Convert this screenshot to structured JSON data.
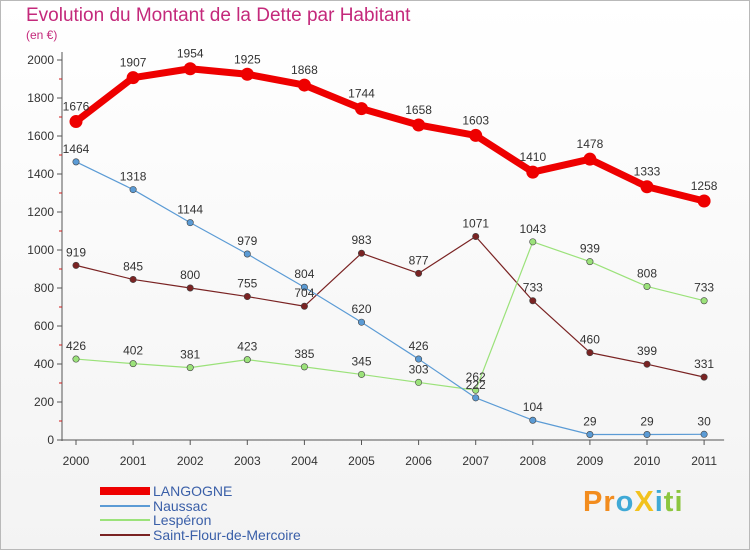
{
  "chart_data": {
    "type": "line",
    "title": "Evolution du Montant de la Dette par Habitant",
    "subtitle": "(en €)",
    "x": [
      "2000",
      "2001",
      "2002",
      "2003",
      "2004",
      "2005",
      "2006",
      "2007",
      "2008",
      "2009",
      "2010",
      "2011"
    ],
    "yticks": [
      0,
      200,
      400,
      600,
      800,
      1000,
      1200,
      1400,
      1600,
      1800,
      2000
    ],
    "ylim": [
      0,
      2000
    ],
    "grid": false,
    "legend_position": "bottom-left",
    "series": [
      {
        "name": "LANGOGNE",
        "color": "#ee0000",
        "values": [
          1676,
          1907,
          1954,
          1925,
          1868,
          1744,
          1658,
          1603,
          1410,
          1478,
          1333,
          1258
        ]
      },
      {
        "name": "Naussac",
        "color": "#5b9bd5",
        "values": [
          1464,
          1318,
          1144,
          979,
          804,
          620,
          426,
          222,
          104,
          29,
          29,
          30
        ]
      },
      {
        "name": "Lespéron",
        "color": "#9be27a",
        "values": [
          426,
          402,
          381,
          423,
          385,
          345,
          303,
          262,
          1043,
          939,
          808,
          733
        ]
      },
      {
        "name": "Saint-Flour-de-Mercoire",
        "color": "#7a2323",
        "values": [
          919,
          845,
          800,
          755,
          704,
          983,
          877,
          1071,
          733,
          460,
          399,
          331
        ]
      }
    ]
  },
  "logo": {
    "text": "ProXiti",
    "letters": [
      {
        "char": "P",
        "color": "#f28c1e"
      },
      {
        "char": "r",
        "color": "#f28c1e"
      },
      {
        "char": "o",
        "color": "#3fa9d6"
      },
      {
        "char": "X",
        "color": "#f2c21e"
      },
      {
        "char": "i",
        "color": "#3fa9d6"
      },
      {
        "char": "t",
        "color": "#8cc63f"
      },
      {
        "char": "i",
        "color": "#8cc63f"
      }
    ]
  }
}
